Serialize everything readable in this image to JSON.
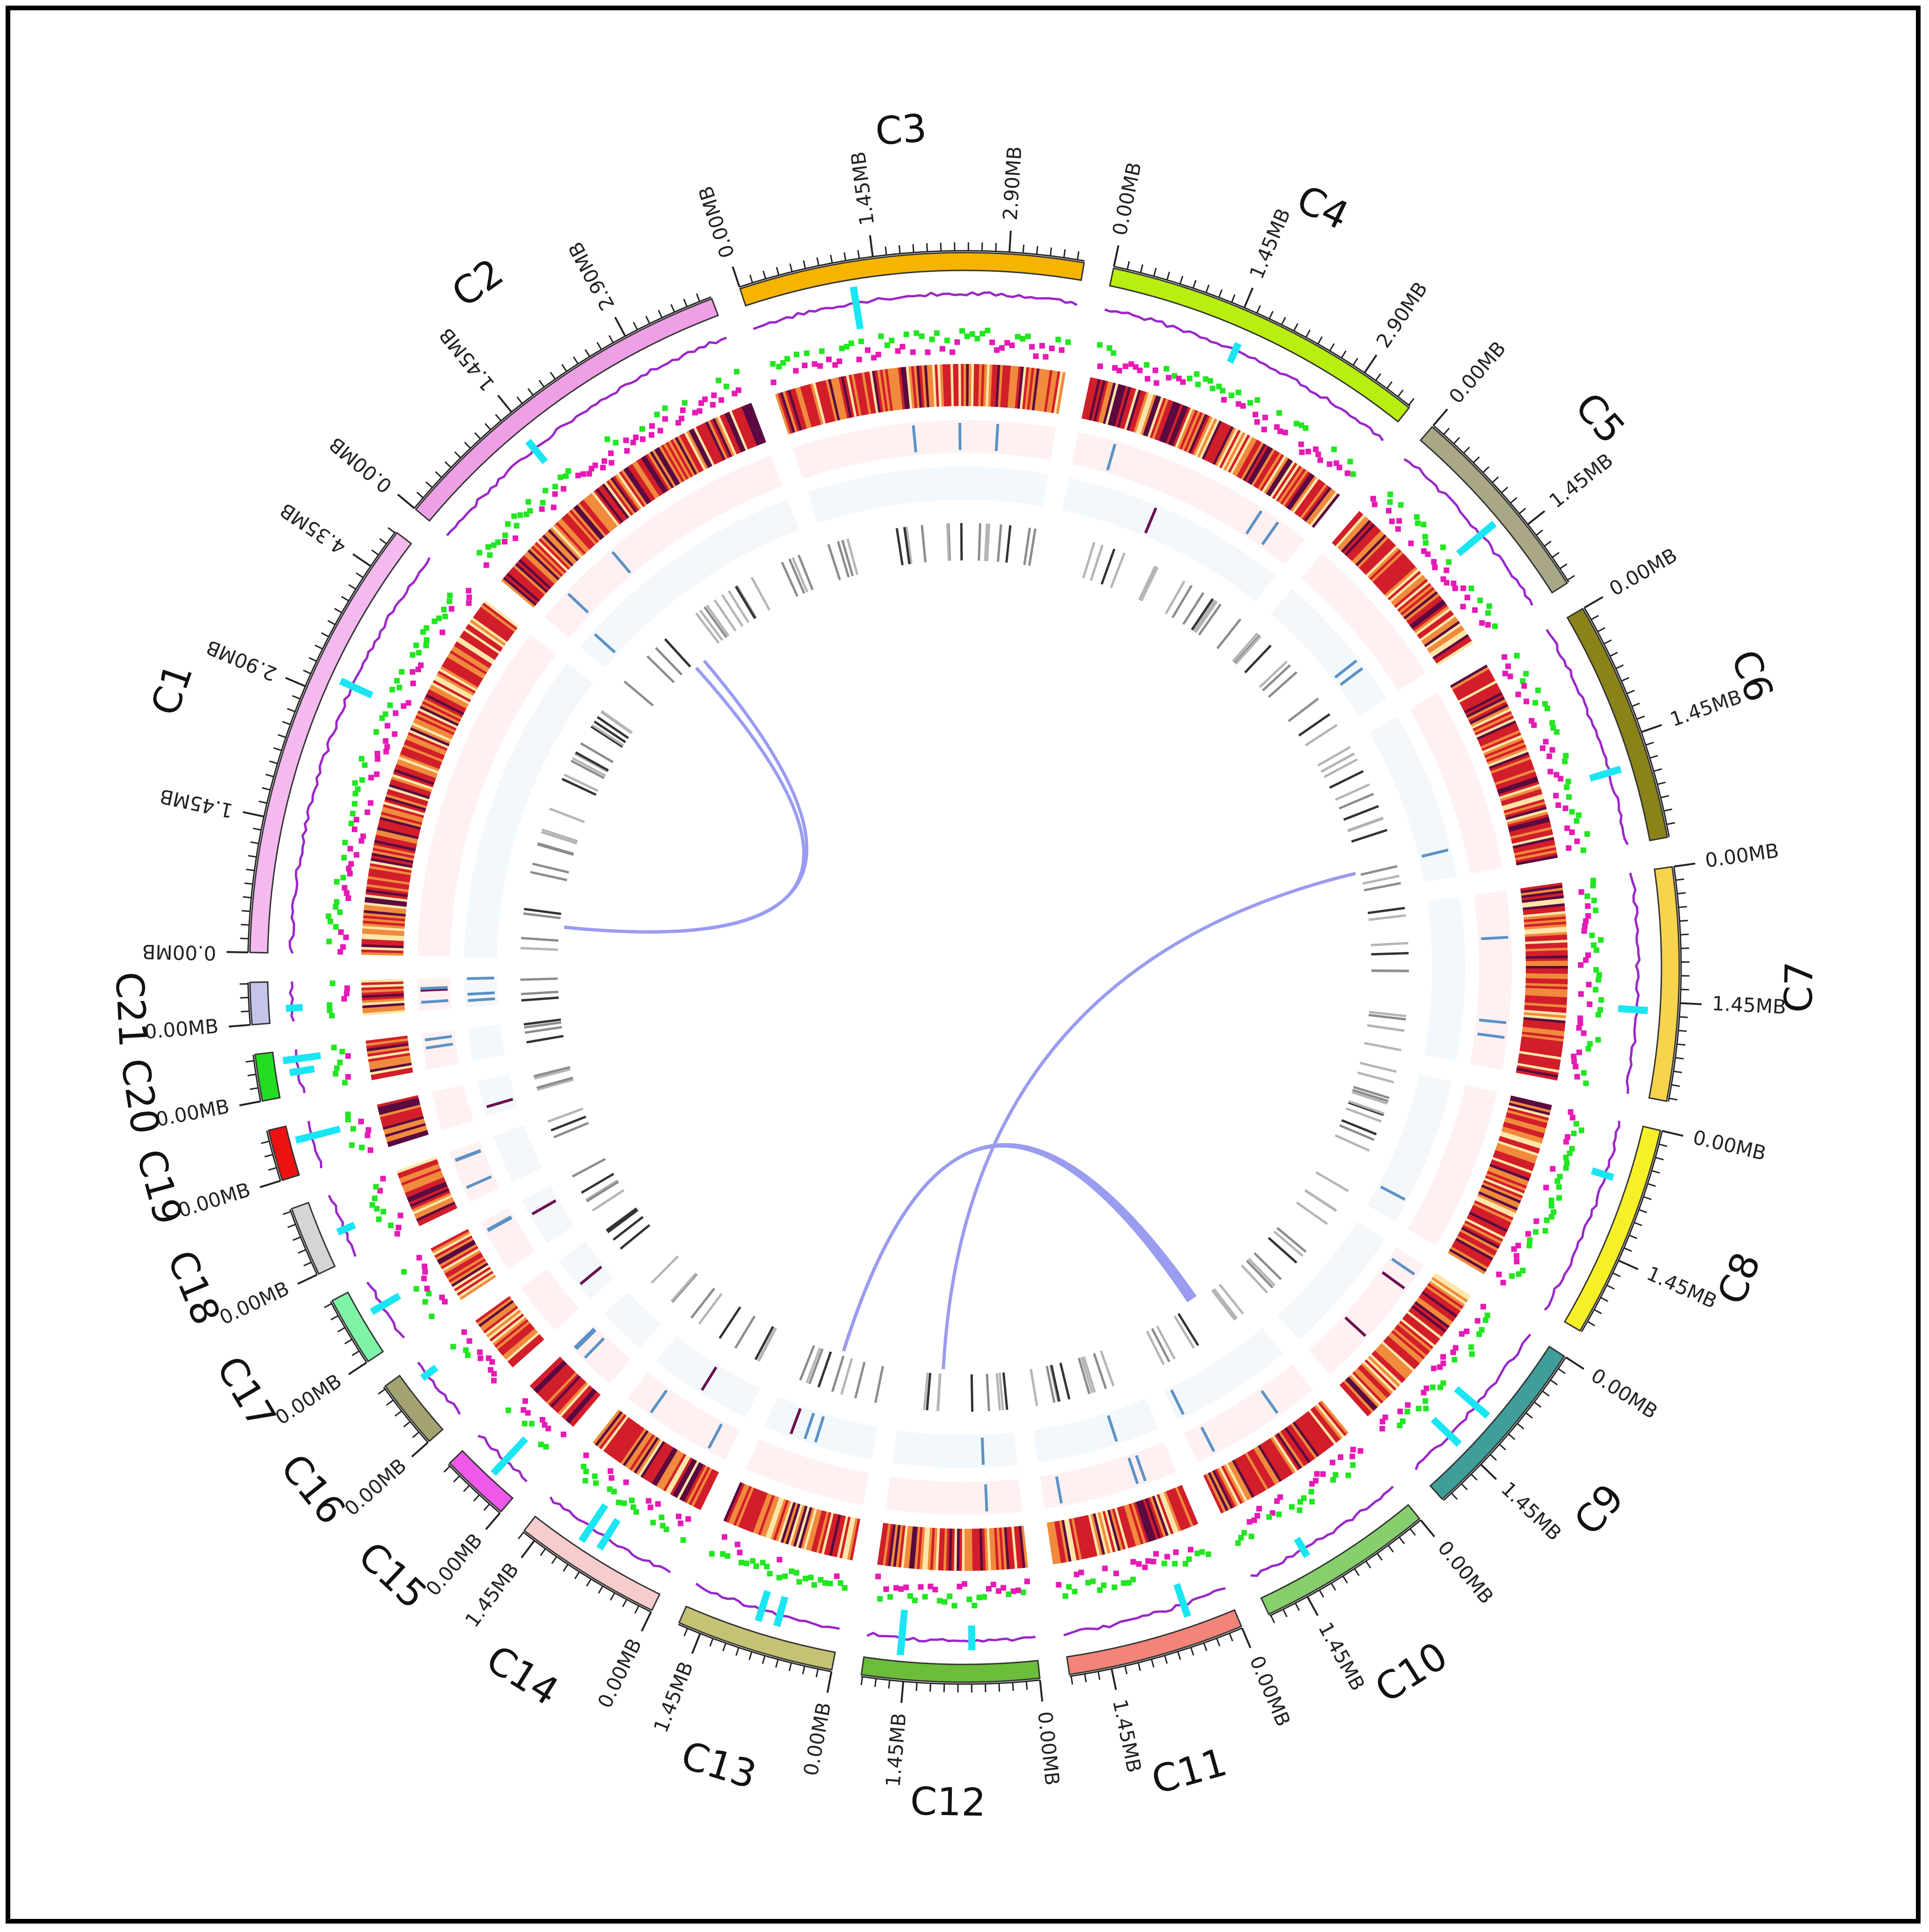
{
  "figure": {
    "description_title": "",
    "tick_step_label_mb": 1.45,
    "tick_unit": "MB"
  },
  "chart_data": {
    "type": "circos",
    "chromosomes": [
      {
        "name": "C1",
        "length_mb": 4.8,
        "color": "#f4b9ef",
        "tick_labels": [
          "0.00MB",
          "1.45MB",
          "2.90MB",
          "4.35MB"
        ]
      },
      {
        "name": "C2",
        "length_mb": 3.9,
        "color": "#ee9fe6",
        "tick_labels": [
          "0.00MB",
          "1.45MB",
          "2.90MB"
        ]
      },
      {
        "name": "C3",
        "length_mb": 3.7,
        "color": "#f5b400",
        "tick_labels": [
          "0.00MB",
          "1.45MB",
          "2.90MB"
        ]
      },
      {
        "name": "C4",
        "length_mb": 3.5,
        "color": "#b8ee10",
        "tick_labels": [
          "0.00MB",
          "1.45MB",
          "2.90MB"
        ]
      },
      {
        "name": "C5",
        "length_mb": 2.2,
        "color": "#a9a785",
        "tick_labels": [
          "0.00MB",
          "1.45MB"
        ]
      },
      {
        "name": "C6",
        "length_mb": 2.6,
        "color": "#8a8318",
        "tick_labels": [
          "0.00MB",
          "1.45MB"
        ]
      },
      {
        "name": "C7",
        "length_mb": 2.5,
        "color": "#f8d34d",
        "tick_labels": [
          "0.00MB",
          "1.45MB"
        ]
      },
      {
        "name": "C8",
        "length_mb": 2.3,
        "color": "#f8f026",
        "tick_labels": [
          "0.00MB",
          "1.45MB"
        ]
      },
      {
        "name": "C9",
        "length_mb": 2.0,
        "color": "#3f9e9a",
        "tick_labels": [
          "0.00MB",
          "1.45MB"
        ]
      },
      {
        "name": "C10",
        "length_mb": 1.9,
        "color": "#86cf6c",
        "tick_labels": [
          "0.00MB",
          "1.45MB"
        ]
      },
      {
        "name": "C11",
        "length_mb": 1.9,
        "color": "#f28479",
        "tick_labels": [
          "0.00MB",
          "1.45MB"
        ]
      },
      {
        "name": "C12",
        "length_mb": 1.9,
        "color": "#6bbd3a",
        "tick_labels": [
          "0.00MB",
          "1.45MB"
        ]
      },
      {
        "name": "C13",
        "length_mb": 1.7,
        "color": "#c5c274",
        "tick_labels": [
          "0.00MB",
          "1.45MB"
        ]
      },
      {
        "name": "C14",
        "length_mb": 1.6,
        "color": "#f7cccc",
        "tick_labels": [
          "0.00MB",
          "1.45MB"
        ]
      },
      {
        "name": "C15",
        "length_mb": 0.75,
        "color": "#ee59ea",
        "tick_labels": [
          "0.00MB"
        ]
      },
      {
        "name": "C16",
        "length_mb": 0.75,
        "color": "#a3a372",
        "tick_labels": [
          "0.00MB"
        ]
      },
      {
        "name": "C17",
        "length_mb": 0.75,
        "color": "#7df4a6",
        "tick_labels": [
          "0.00MB"
        ]
      },
      {
        "name": "C18",
        "length_mb": 0.75,
        "color": "#d5d5d5",
        "tick_labels": [
          "0.00MB"
        ]
      },
      {
        "name": "C19",
        "length_mb": 0.55,
        "color": "#ee1111",
        "tick_labels": [
          "0.00MB"
        ]
      },
      {
        "name": "C20",
        "length_mb": 0.5,
        "color": "#22dd22",
        "tick_labels": [
          "0.00MB"
        ]
      },
      {
        "name": "C21",
        "length_mb": 0.45,
        "color": "#c5c5ec",
        "tick_labels": [
          "0.00MB"
        ]
      }
    ],
    "tracks": [
      "coverage (cyan/purple)",
      "GC skew (green/magenta)",
      "gene density heatmap",
      "feature track 1",
      "feature track 2",
      "feature track 3"
    ],
    "links": [
      {
        "from": "C1",
        "from_mb": 0.6,
        "to": "C2",
        "to_mb": 1.3,
        "note": "link 1"
      },
      {
        "from": "C1",
        "from_mb": 0.6,
        "to": "C2",
        "to_mb": 1.1,
        "note": "link 2"
      },
      {
        "from": "C13",
        "from_mb": 0.9,
        "to": "C10",
        "to_mb": 0.6,
        "note": "link 3"
      },
      {
        "from": "C13",
        "from_mb": 0.9,
        "to": "C10",
        "to_mb": 0.65,
        "note": "link 4"
      },
      {
        "from": "C13",
        "from_mb": 0.9,
        "to": "C10",
        "to_mb": 0.7,
        "note": "link 5"
      },
      {
        "from": "C13",
        "from_mb": 0.9,
        "to": "C10",
        "to_mb": 0.75,
        "note": "link 6"
      },
      {
        "from": "C12",
        "from_mb": 1.2,
        "to": "C6",
        "to_mb": 2.2,
        "note": "link 7"
      }
    ],
    "colors": {
      "link": "#9a9cf0",
      "coverage_high": "#19e6f2",
      "coverage_line": "#9a28c8",
      "gc_pos": "#22e622",
      "gc_neg": "#e61ab4",
      "heat_low": "#fde6a8",
      "heat_mid": "#f08a3c",
      "heat_high": "#d21e2a",
      "heat_max": "#5a0a40",
      "feat1_bg": "#fff1f1",
      "feat2_bg": "#f2f8fb",
      "feat_blue": "#5b92c5",
      "feat_purple": "#6a1050",
      "feat_gray": "#8c8c8c"
    }
  }
}
